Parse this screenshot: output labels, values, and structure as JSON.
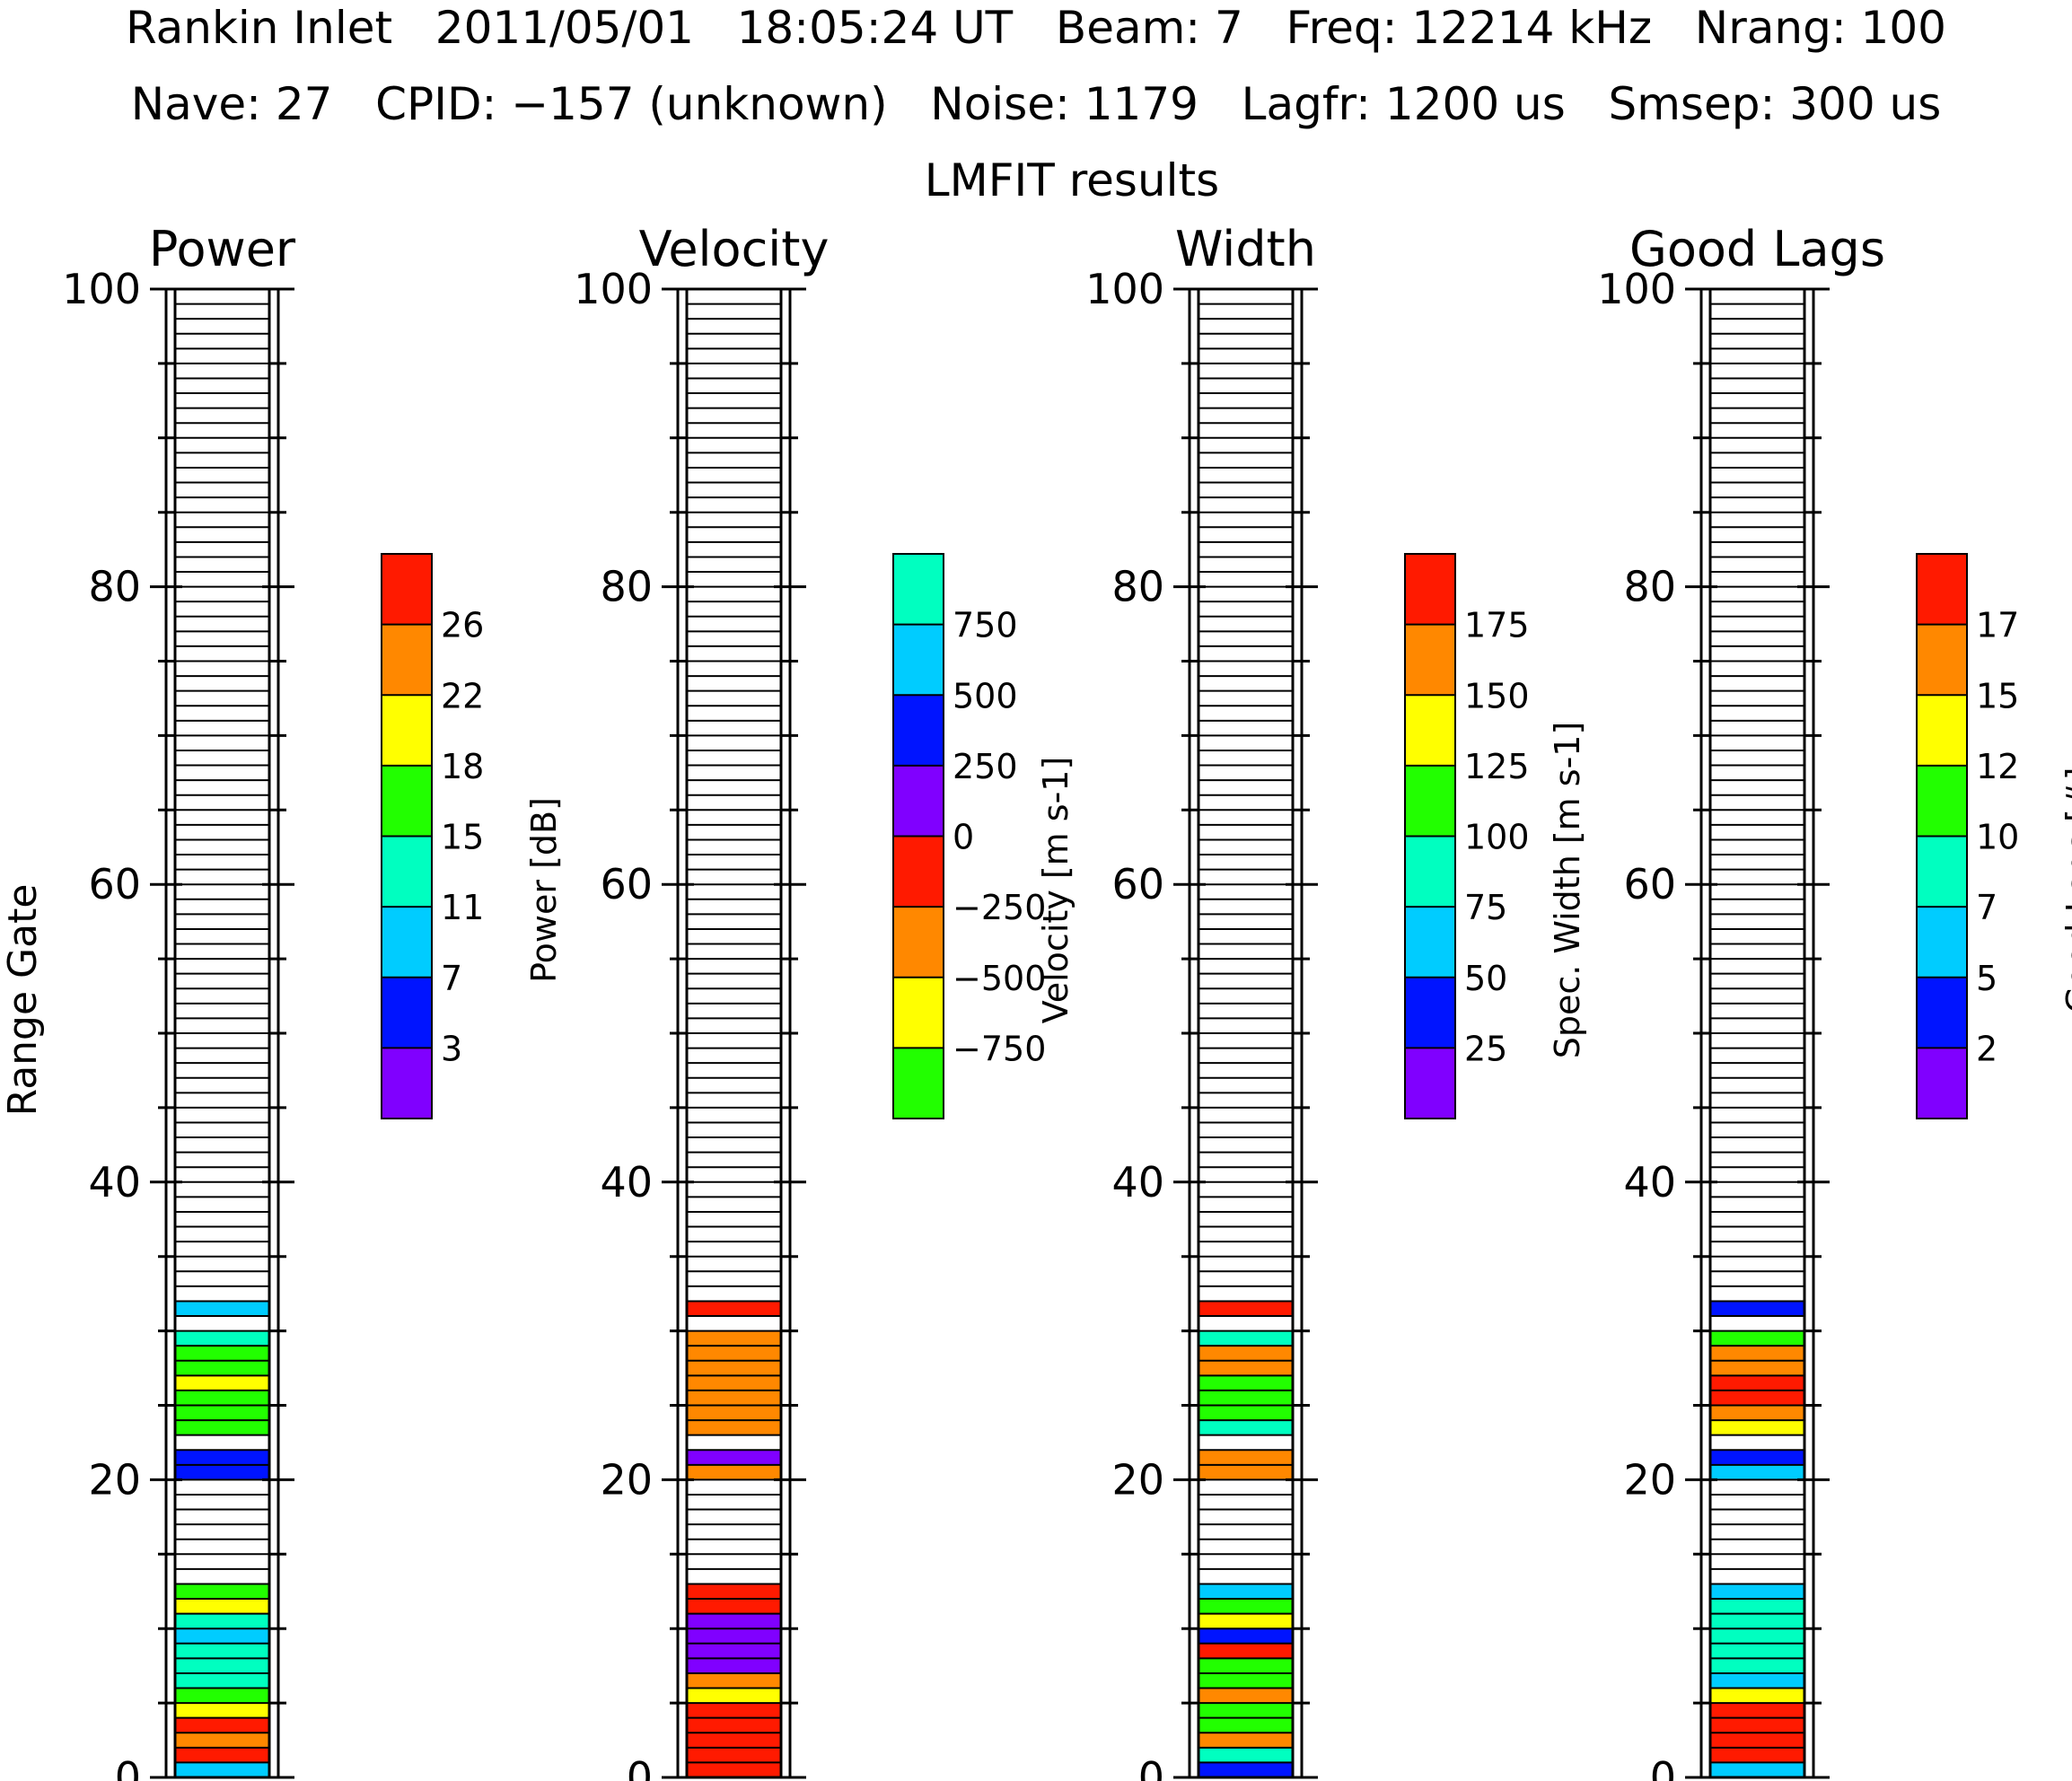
{
  "header": {
    "line1": "Rankin Inlet   2011/05/01   18:05:24 UT   Beam: 7   Freq: 12214 kHz   Nrang: 100",
    "line2": "Nave: 27   CPID: −157 (unknown)   Noise: 1179   Lagfr: 1200 us   Smsep: 300 us",
    "line3": "LMFIT results"
  },
  "y_axis_label": "Range Gate",
  "palettes": {
    "rainbow8": [
      "#8000ff",
      "#0014ff",
      "#00ccff",
      "#00ffc0",
      "#22ff00",
      "#ffff00",
      "#ff8800",
      "#ff1a00"
    ],
    "velocity8": [
      "#22ff00",
      "#ffff00",
      "#ff8800",
      "#ff1a00",
      "#8000ff",
      "#0014ff",
      "#00ccff",
      "#00ffc0"
    ]
  },
  "chart_data": [
    {
      "type": "heatmap",
      "title": "Power",
      "ylabel": "Range Gate",
      "ylim": [
        0,
        100
      ],
      "yticks": [
        "0",
        "20",
        "40",
        "60",
        "80",
        "100"
      ],
      "colorbar": {
        "label": "Power [dB]",
        "palette": "rainbow8",
        "tick_labels": [
          "3",
          "7",
          "11",
          "15",
          "18",
          "22",
          "26"
        ]
      },
      "gates": [
        {
          "gate": 0,
          "bin": 2
        },
        {
          "gate": 1,
          "bin": 7
        },
        {
          "gate": 2,
          "bin": 6
        },
        {
          "gate": 3,
          "bin": 7
        },
        {
          "gate": 4,
          "bin": 5
        },
        {
          "gate": 5,
          "bin": 4
        },
        {
          "gate": 6,
          "bin": 3
        },
        {
          "gate": 7,
          "bin": 3
        },
        {
          "gate": 8,
          "bin": 3
        },
        {
          "gate": 9,
          "bin": 2
        },
        {
          "gate": 10,
          "bin": 3
        },
        {
          "gate": 11,
          "bin": 5
        },
        {
          "gate": 12,
          "bin": 4
        },
        {
          "gate": 20,
          "bin": 1
        },
        {
          "gate": 21,
          "bin": 1
        },
        {
          "gate": 23,
          "bin": 4
        },
        {
          "gate": 24,
          "bin": 4
        },
        {
          "gate": 25,
          "bin": 4
        },
        {
          "gate": 26,
          "bin": 5
        },
        {
          "gate": 27,
          "bin": 4
        },
        {
          "gate": 28,
          "bin": 4
        },
        {
          "gate": 29,
          "bin": 3
        },
        {
          "gate": 31,
          "bin": 2
        }
      ]
    },
    {
      "type": "heatmap",
      "title": "Velocity",
      "ylim": [
        0,
        100
      ],
      "yticks": [
        "0",
        "20",
        "40",
        "60",
        "80",
        "100"
      ],
      "colorbar": {
        "label": "Velocity [m s-1]",
        "palette": "velocity8",
        "tick_labels": [
          "−750",
          "−500",
          "−250",
          "0",
          "250",
          "500",
          "750"
        ]
      },
      "gates": [
        {
          "gate": 0,
          "bin": 3
        },
        {
          "gate": 1,
          "bin": 3
        },
        {
          "gate": 2,
          "bin": 3
        },
        {
          "gate": 3,
          "bin": 3
        },
        {
          "gate": 4,
          "bin": 3
        },
        {
          "gate": 5,
          "bin": 1
        },
        {
          "gate": 6,
          "bin": 2
        },
        {
          "gate": 7,
          "bin": 4
        },
        {
          "gate": 8,
          "bin": 4
        },
        {
          "gate": 9,
          "bin": 4
        },
        {
          "gate": 10,
          "bin": 4
        },
        {
          "gate": 11,
          "bin": 3
        },
        {
          "gate": 12,
          "bin": 3
        },
        {
          "gate": 20,
          "bin": 2
        },
        {
          "gate": 21,
          "bin": 4
        },
        {
          "gate": 23,
          "bin": 2
        },
        {
          "gate": 24,
          "bin": 2
        },
        {
          "gate": 25,
          "bin": 2
        },
        {
          "gate": 26,
          "bin": 2
        },
        {
          "gate": 27,
          "bin": 2
        },
        {
          "gate": 28,
          "bin": 2
        },
        {
          "gate": 29,
          "bin": 2
        },
        {
          "gate": 31,
          "bin": 3
        }
      ]
    },
    {
      "type": "heatmap",
      "title": "Width",
      "ylim": [
        0,
        100
      ],
      "yticks": [
        "0",
        "20",
        "40",
        "60",
        "80",
        "100"
      ],
      "colorbar": {
        "label": "Spec. Width [m s-1]",
        "palette": "rainbow8",
        "tick_labels": [
          "25",
          "50",
          "75",
          "100",
          "125",
          "150",
          "175"
        ]
      },
      "gates": [
        {
          "gate": 0,
          "bin": 1
        },
        {
          "gate": 1,
          "bin": 3
        },
        {
          "gate": 2,
          "bin": 6
        },
        {
          "gate": 3,
          "bin": 4
        },
        {
          "gate": 4,
          "bin": 4
        },
        {
          "gate": 5,
          "bin": 6
        },
        {
          "gate": 6,
          "bin": 4
        },
        {
          "gate": 7,
          "bin": 4
        },
        {
          "gate": 8,
          "bin": 7
        },
        {
          "gate": 9,
          "bin": 1
        },
        {
          "gate": 10,
          "bin": 5
        },
        {
          "gate": 11,
          "bin": 4
        },
        {
          "gate": 12,
          "bin": 2
        },
        {
          "gate": 20,
          "bin": 6
        },
        {
          "gate": 21,
          "bin": 6
        },
        {
          "gate": 23,
          "bin": 3
        },
        {
          "gate": 24,
          "bin": 4
        },
        {
          "gate": 25,
          "bin": 4
        },
        {
          "gate": 26,
          "bin": 4
        },
        {
          "gate": 27,
          "bin": 6
        },
        {
          "gate": 28,
          "bin": 6
        },
        {
          "gate": 29,
          "bin": 3
        },
        {
          "gate": 31,
          "bin": 7
        }
      ]
    },
    {
      "type": "heatmap",
      "title": "Good Lags",
      "ylim": [
        0,
        100
      ],
      "yticks": [
        "0",
        "20",
        "40",
        "60",
        "80",
        "100"
      ],
      "colorbar": {
        "label": "Good Lags [#]",
        "palette": "rainbow8",
        "tick_labels": [
          "2",
          "5",
          "7",
          "10",
          "12",
          "15",
          "17"
        ]
      },
      "gates": [
        {
          "gate": 0,
          "bin": 2
        },
        {
          "gate": 1,
          "bin": 7
        },
        {
          "gate": 2,
          "bin": 7
        },
        {
          "gate": 3,
          "bin": 7
        },
        {
          "gate": 4,
          "bin": 7
        },
        {
          "gate": 5,
          "bin": 5
        },
        {
          "gate": 6,
          "bin": 2
        },
        {
          "gate": 7,
          "bin": 3
        },
        {
          "gate": 8,
          "bin": 3
        },
        {
          "gate": 9,
          "bin": 3
        },
        {
          "gate": 10,
          "bin": 3
        },
        {
          "gate": 11,
          "bin": 3
        },
        {
          "gate": 12,
          "bin": 2
        },
        {
          "gate": 20,
          "bin": 2
        },
        {
          "gate": 21,
          "bin": 1
        },
        {
          "gate": 23,
          "bin": 5
        },
        {
          "gate": 24,
          "bin": 6
        },
        {
          "gate": 25,
          "bin": 7
        },
        {
          "gate": 26,
          "bin": 7
        },
        {
          "gate": 27,
          "bin": 6
        },
        {
          "gate": 28,
          "bin": 6
        },
        {
          "gate": 29,
          "bin": 4
        },
        {
          "gate": 31,
          "bin": 1
        }
      ]
    }
  ]
}
